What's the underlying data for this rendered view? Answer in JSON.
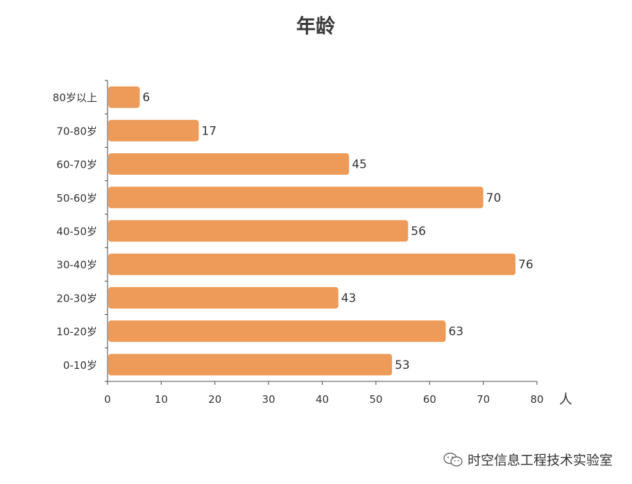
{
  "chart_data": {
    "type": "bar",
    "orientation": "horizontal",
    "title": "年龄",
    "xlabel": "人",
    "ylabel": "",
    "categories": [
      "0-10岁",
      "10-20岁",
      "20-30岁",
      "30-40岁",
      "40-50岁",
      "50-60岁",
      "60-70岁",
      "70-80岁",
      "80岁以上"
    ],
    "values": [
      53,
      63,
      43,
      76,
      56,
      70,
      45,
      17,
      6
    ],
    "xlim": [
      0,
      80
    ],
    "xticks": [
      0,
      10,
      20,
      30,
      40,
      50,
      60,
      70,
      80
    ],
    "bar_color": "#EE9B5A",
    "grid": false,
    "data_labels": true
  },
  "watermark": {
    "icon": "wechat-icon",
    "text": "时空信息工程技术实验室"
  }
}
